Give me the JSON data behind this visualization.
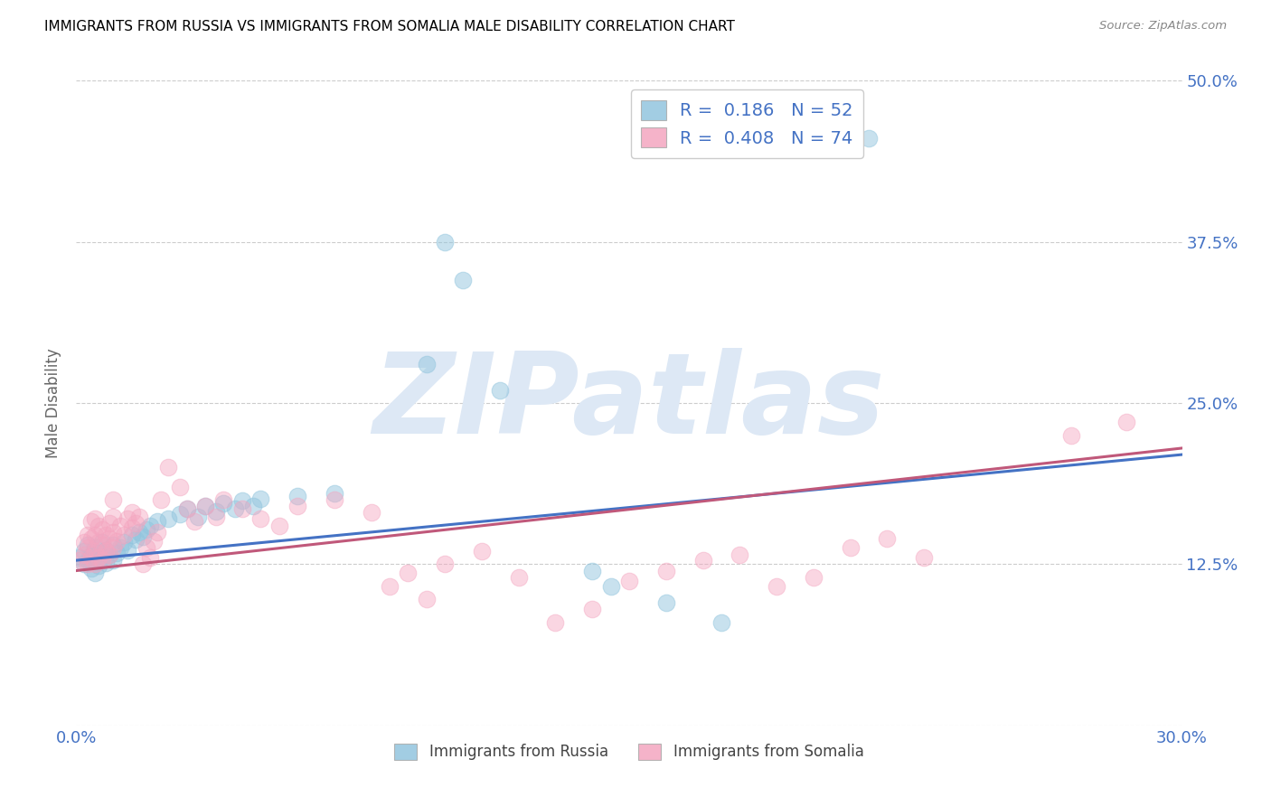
{
  "title": "IMMIGRANTS FROM RUSSIA VS IMMIGRANTS FROM SOMALIA MALE DISABILITY CORRELATION CHART",
  "source": "Source: ZipAtlas.com",
  "ylabel": "Male Disability",
  "xlim": [
    0.0,
    0.3
  ],
  "ylim": [
    0.0,
    0.5
  ],
  "xticks": [
    0.0,
    0.05,
    0.1,
    0.15,
    0.2,
    0.25,
    0.3
  ],
  "xtick_labels": [
    "0.0%",
    "",
    "",
    "",
    "",
    "",
    "30.0%"
  ],
  "yticks": [
    0.0,
    0.125,
    0.25,
    0.375,
    0.5
  ],
  "ytick_labels": [
    "",
    "12.5%",
    "25.0%",
    "37.5%",
    "50.0%"
  ],
  "russia_R": 0.186,
  "russia_N": 52,
  "somalia_R": 0.408,
  "somalia_N": 74,
  "russia_color": "#92c5de",
  "somalia_color": "#f4a6c0",
  "russia_line_color": "#4472c4",
  "somalia_line_color": "#c0587a",
  "russia_scatter": [
    [
      0.001,
      0.13
    ],
    [
      0.002,
      0.125
    ],
    [
      0.002,
      0.135
    ],
    [
      0.003,
      0.128
    ],
    [
      0.003,
      0.14
    ],
    [
      0.004,
      0.122
    ],
    [
      0.004,
      0.132
    ],
    [
      0.005,
      0.118
    ],
    [
      0.005,
      0.128
    ],
    [
      0.005,
      0.138
    ],
    [
      0.006,
      0.124
    ],
    [
      0.006,
      0.134
    ],
    [
      0.007,
      0.13
    ],
    [
      0.007,
      0.142
    ],
    [
      0.008,
      0.126
    ],
    [
      0.008,
      0.136
    ],
    [
      0.009,
      0.132
    ],
    [
      0.01,
      0.128
    ],
    [
      0.01,
      0.14
    ],
    [
      0.011,
      0.134
    ],
    [
      0.012,
      0.138
    ],
    [
      0.013,
      0.142
    ],
    [
      0.014,
      0.136
    ],
    [
      0.015,
      0.148
    ],
    [
      0.016,
      0.144
    ],
    [
      0.017,
      0.15
    ],
    [
      0.018,
      0.146
    ],
    [
      0.019,
      0.152
    ],
    [
      0.02,
      0.155
    ],
    [
      0.022,
      0.158
    ],
    [
      0.025,
      0.16
    ],
    [
      0.028,
      0.164
    ],
    [
      0.03,
      0.168
    ],
    [
      0.033,
      0.162
    ],
    [
      0.035,
      0.17
    ],
    [
      0.038,
      0.166
    ],
    [
      0.04,
      0.172
    ],
    [
      0.043,
      0.168
    ],
    [
      0.045,
      0.174
    ],
    [
      0.048,
      0.17
    ],
    [
      0.05,
      0.176
    ],
    [
      0.06,
      0.178
    ],
    [
      0.07,
      0.18
    ],
    [
      0.095,
      0.28
    ],
    [
      0.1,
      0.375
    ],
    [
      0.105,
      0.345
    ],
    [
      0.115,
      0.26
    ],
    [
      0.14,
      0.12
    ],
    [
      0.145,
      0.108
    ],
    [
      0.16,
      0.095
    ],
    [
      0.175,
      0.08
    ],
    [
      0.215,
      0.455
    ]
  ],
  "somalia_scatter": [
    [
      0.001,
      0.128
    ],
    [
      0.002,
      0.132
    ],
    [
      0.002,
      0.142
    ],
    [
      0.003,
      0.125
    ],
    [
      0.003,
      0.138
    ],
    [
      0.003,
      0.148
    ],
    [
      0.004,
      0.13
    ],
    [
      0.004,
      0.145
    ],
    [
      0.004,
      0.158
    ],
    [
      0.005,
      0.125
    ],
    [
      0.005,
      0.135
    ],
    [
      0.005,
      0.148
    ],
    [
      0.005,
      0.16
    ],
    [
      0.006,
      0.13
    ],
    [
      0.006,
      0.142
    ],
    [
      0.006,
      0.155
    ],
    [
      0.007,
      0.128
    ],
    [
      0.007,
      0.14
    ],
    [
      0.007,
      0.152
    ],
    [
      0.008,
      0.135
    ],
    [
      0.008,
      0.148
    ],
    [
      0.009,
      0.132
    ],
    [
      0.009,
      0.145
    ],
    [
      0.009,
      0.157
    ],
    [
      0.01,
      0.138
    ],
    [
      0.01,
      0.15
    ],
    [
      0.01,
      0.162
    ],
    [
      0.01,
      0.175
    ],
    [
      0.011,
      0.143
    ],
    [
      0.012,
      0.155
    ],
    [
      0.013,
      0.148
    ],
    [
      0.014,
      0.16
    ],
    [
      0.015,
      0.153
    ],
    [
      0.015,
      0.165
    ],
    [
      0.016,
      0.157
    ],
    [
      0.017,
      0.162
    ],
    [
      0.018,
      0.125
    ],
    [
      0.019,
      0.138
    ],
    [
      0.02,
      0.13
    ],
    [
      0.021,
      0.143
    ],
    [
      0.022,
      0.15
    ],
    [
      0.023,
      0.175
    ],
    [
      0.025,
      0.2
    ],
    [
      0.028,
      0.185
    ],
    [
      0.03,
      0.168
    ],
    [
      0.032,
      0.158
    ],
    [
      0.035,
      0.17
    ],
    [
      0.038,
      0.162
    ],
    [
      0.04,
      0.175
    ],
    [
      0.045,
      0.168
    ],
    [
      0.05,
      0.16
    ],
    [
      0.055,
      0.155
    ],
    [
      0.06,
      0.17
    ],
    [
      0.07,
      0.175
    ],
    [
      0.08,
      0.165
    ],
    [
      0.085,
      0.108
    ],
    [
      0.09,
      0.118
    ],
    [
      0.095,
      0.098
    ],
    [
      0.1,
      0.125
    ],
    [
      0.11,
      0.135
    ],
    [
      0.12,
      0.115
    ],
    [
      0.13,
      0.08
    ],
    [
      0.14,
      0.09
    ],
    [
      0.15,
      0.112
    ],
    [
      0.16,
      0.12
    ],
    [
      0.17,
      0.128
    ],
    [
      0.18,
      0.132
    ],
    [
      0.19,
      0.108
    ],
    [
      0.2,
      0.115
    ],
    [
      0.21,
      0.138
    ],
    [
      0.22,
      0.145
    ],
    [
      0.23,
      0.13
    ],
    [
      0.27,
      0.225
    ],
    [
      0.285,
      0.235
    ]
  ],
  "russia_regline": [
    [
      0.0,
      0.128
    ],
    [
      0.3,
      0.21
    ]
  ],
  "somalia_regline": [
    [
      0.0,
      0.12
    ],
    [
      0.3,
      0.215
    ]
  ],
  "background_color": "#ffffff",
  "grid_color": "#cccccc",
  "title_color": "#000000",
  "tick_color": "#4472c4",
  "watermark_text": "ZIPatlas",
  "watermark_color": "#dde8f5"
}
